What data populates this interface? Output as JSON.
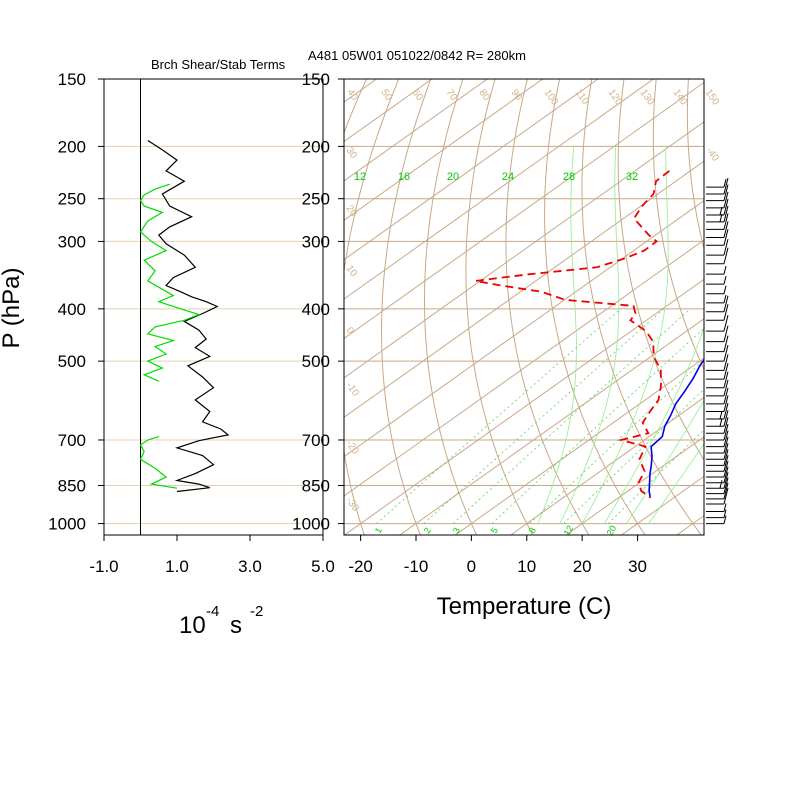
{
  "chart_data": [
    {
      "type": "line",
      "panel": "shear-stability",
      "title": "Brch Shear/Stab Terms",
      "ylabel": "P (hPa)",
      "xlabel": "10",
      "xlabel_exponent": "-4",
      "xlabel_unit": "s",
      "xlabel_unit_exponent": "-2",
      "y_scale": "log",
      "y_reversed": true,
      "xlim": [
        -1.0,
        5.0
      ],
      "ylim": [
        1000,
        150
      ],
      "xticks": [
        "-1.0",
        "1.0",
        "3.0",
        "5.0"
      ],
      "xtick_values": [
        -1.0,
        1.0,
        3.0,
        5.0
      ],
      "yticks": [
        "150",
        "200",
        "250",
        "300",
        "400",
        "500",
        "700",
        "850",
        "1000"
      ],
      "ytick_values": [
        150,
        200,
        250,
        300,
        400,
        500,
        700,
        850,
        1000
      ],
      "zero_line_x": 0.0,
      "series": [
        {
          "color": "#000000",
          "p": [
            195,
            203,
            212,
            222,
            232,
            245,
            258,
            270,
            282,
            292,
            303,
            318,
            335,
            350,
            362,
            372,
            380,
            388,
            396,
            408,
            422,
            438,
            455,
            472,
            490,
            510,
            535,
            560,
            590,
            620,
            648,
            668,
            685,
            702,
            724,
            748,
            778,
            808,
            832,
            845,
            858,
            872
          ],
          "x": [
            0.2,
            0.6,
            1.0,
            0.7,
            1.2,
            0.6,
            0.8,
            1.4,
            0.8,
            0.5,
            0.7,
            1.2,
            1.5,
            0.9,
            0.7,
            1.1,
            1.4,
            1.8,
            2.1,
            1.7,
            1.2,
            1.6,
            1.8,
            1.5,
            1.9,
            1.3,
            1.7,
            2.0,
            1.5,
            1.9,
            1.7,
            2.2,
            2.4,
            1.6,
            1.0,
            1.7,
            2.0,
            1.5,
            1.0,
            1.6,
            1.9,
            1.0
          ]
        },
        {
          "color": "#00dd00",
          "p": [
            235,
            240,
            246,
            252,
            258,
            265,
            275,
            288,
            300,
            312,
            325,
            340,
            355,
            368,
            378,
            388,
            398,
            410,
            420,
            432,
            445,
            458,
            470,
            485,
            500,
            515,
            530,
            545
          ],
          "x": [
            0.8,
            0.4,
            0.1,
            0.0,
            0.1,
            0.6,
            0.2,
            0.0,
            0.3,
            0.7,
            0.1,
            0.4,
            0.2,
            0.6,
            0.9,
            0.5,
            1.0,
            1.6,
            1.2,
            0.4,
            0.2,
            0.9,
            0.4,
            0.7,
            0.2,
            0.6,
            0.1,
            0.5
          ]
        },
        {
          "color": "#00dd00",
          "p": [
            690,
            700,
            715,
            735,
            760,
            790,
            820,
            845,
            860
          ],
          "x": [
            0.5,
            0.2,
            0.0,
            0.1,
            0.0,
            0.4,
            0.7,
            0.3,
            1.0
          ]
        }
      ]
    },
    {
      "type": "line",
      "panel": "skew-t",
      "title": "A481 05W01 051022/0842 R= 280km",
      "xlabel": "Temperature (C)",
      "y_scale": "log",
      "y_reversed": true,
      "xlim": [
        -23,
        42
      ],
      "ylim": [
        1000,
        150
      ],
      "skew_c_per_decade": 137,
      "xticks": [
        "-20",
        "-10",
        "0",
        "10",
        "20",
        "30"
      ],
      "xtick_values": [
        -20,
        -10,
        0,
        10,
        20,
        30
      ],
      "yticks": [
        "150",
        "200",
        "250",
        "300",
        "400",
        "500",
        "700",
        "850",
        "1000"
      ],
      "ytick_values": [
        150,
        200,
        250,
        300,
        400,
        500,
        700,
        850,
        1000
      ],
      "isopleth_colors": {
        "isotherm_dry_adiabat": "#c8a887",
        "moist_adiabat": "#90ee90",
        "mixing_ratio": "#66cc66",
        "moist_label": "#00cc00",
        "dry_label": "#d2b48c"
      },
      "dry_adiabat_labels": [
        "40",
        "50",
        "60",
        "70",
        "80",
        "90",
        "100",
        "110",
        "120",
        "130",
        "140",
        "150",
        "30",
        "20",
        "10",
        "0",
        "-10",
        "-20",
        "-30",
        "-40"
      ],
      "moist_adiabat_labels": [
        "12",
        "16",
        "20",
        "24",
        "28",
        "32"
      ],
      "mixing_ratio_labels": [
        "1",
        "2",
        "3",
        "5",
        "8",
        "12",
        "20"
      ],
      "series": [
        {
          "role": "temperature",
          "color": "#0000ee",
          "style": "solid",
          "p": [
            185,
            200,
            220,
            245,
            270,
            300,
            330,
            360,
            390,
            420,
            450,
            480,
            510,
            540,
            570,
            600,
            630,
            660,
            690,
            720,
            750,
            780,
            810,
            840,
            870,
            895
          ],
          "t": [
            -48.6,
            -44.6,
            -39.3,
            -33.5,
            -27.1,
            -21.2,
            -16.0,
            -11.1,
            -6.9,
            -4.6,
            -2.8,
            -0.7,
            1.2,
            3.3,
            5.0,
            6.5,
            8.5,
            10.2,
            12.4,
            12.9,
            15.5,
            17.7,
            19.7,
            21.8,
            23.8,
            25.7
          ]
        },
        {
          "role": "dewpoint",
          "color": "#ee0000",
          "style": "dashed",
          "p": [
            222,
            232,
            245,
            258,
            272,
            292,
            300,
            312,
            322,
            335,
            345,
            355,
            362,
            372,
            385,
            395,
            408,
            420,
            440,
            460,
            490,
            520,
            555,
            590,
            620,
            650,
            680,
            700,
            720,
            760,
            800,
            840,
            870,
            895
          ],
          "t": [
            -53.8,
            -53.6,
            -50.8,
            -49.8,
            -48.1,
            -41.2,
            -38.2,
            -38.1,
            -39.5,
            -42.4,
            -52.8,
            -60.9,
            -55.1,
            -46.2,
            -39.8,
            -26.0,
            -23.7,
            -22.9,
            -17.3,
            -13.4,
            -9.5,
            -4.7,
            -0.8,
            2.4,
            3.8,
            5.3,
            9.0,
            5.8,
            11.9,
            14.0,
            18.0,
            19.8,
            22.4,
            25.7
          ]
        }
      ],
      "wind_barbs": {
        "p": [
          238,
          245,
          252,
          260,
          268,
          276,
          285,
          295,
          305,
          318,
          330,
          345,
          360,
          375,
          390,
          405,
          420,
          440,
          460,
          480,
          500,
          520,
          540,
          560,
          580,
          600,
          620,
          640,
          660,
          680,
          700,
          720,
          740,
          760,
          780,
          800,
          820,
          840,
          860,
          880,
          900,
          920,
          950,
          975,
          1000
        ],
        "speed_kt": [
          5,
          10,
          10,
          10,
          15,
          15,
          10,
          10,
          10,
          10,
          10,
          5,
          5,
          5,
          5,
          10,
          10,
          10,
          10,
          10,
          10,
          10,
          10,
          10,
          10,
          10,
          10,
          15,
          15,
          10,
          10,
          10,
          10,
          10,
          10,
          10,
          10,
          10,
          15,
          10,
          10,
          10,
          5,
          5,
          5
        ]
      }
    }
  ]
}
